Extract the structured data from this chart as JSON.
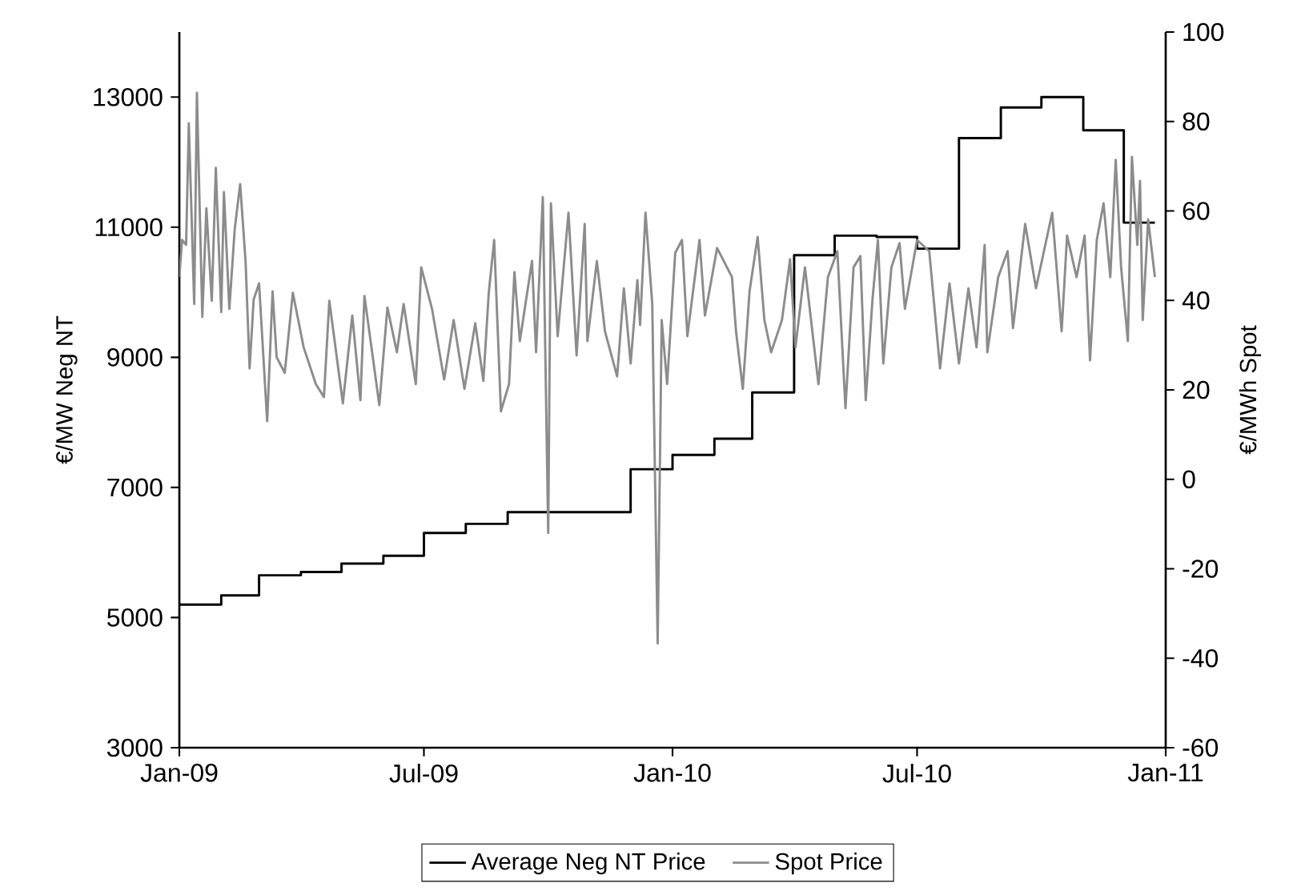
{
  "chart_data": {
    "type": "line",
    "ylabel": "€/MW Neg NT",
    "y2label": "€/MWh Spot",
    "legend": "bottom",
    "marker": "none",
    "xlim": [
      "2009-01-01",
      "2011-01-01"
    ],
    "xticks": [
      {
        "value": "2009-01-01",
        "label": "Jan-09"
      },
      {
        "value": "2009-07-01",
        "label": "Jul-09"
      },
      {
        "value": "2010-01-01",
        "label": "Jan-10"
      },
      {
        "value": "2010-07-01",
        "label": "Jul-10"
      },
      {
        "value": "2011-01-01",
        "label": "Jan-11"
      }
    ],
    "ylim": [
      3000,
      14000
    ],
    "yticks": [
      3000,
      5000,
      7000,
      9000,
      11000,
      13000
    ],
    "y2lim": [
      -60,
      100
    ],
    "y2ticks": [
      -60,
      -40,
      -20,
      0,
      20,
      40,
      60,
      80,
      100
    ],
    "series": [
      {
        "name": "Average Neg NT Price",
        "type": "step",
        "color": "#000000",
        "x": [
          "2009-01-01",
          "2009-02-01",
          "2009-03-01",
          "2009-04-01",
          "2009-05-01",
          "2009-06-01",
          "2009-07-01",
          "2009-08-01",
          "2009-09-01",
          "2009-12-01",
          "2010-01-01",
          "2010-02-01",
          "2010-03-01",
          "2010-04-01",
          "2010-05-01",
          "2010-06-01",
          "2010-07-01",
          "2010-08-01",
          "2010-09-01",
          "2010-10-01",
          "2010-11-01",
          "2010-12-01",
          "2010-12-24"
        ],
        "values": [
          5200,
          5340,
          5650,
          5700,
          5830,
          5950,
          6300,
          6440,
          6620,
          7280,
          7500,
          7750,
          8460,
          10570,
          10870,
          10850,
          10670,
          12370,
          12840,
          13000,
          12490,
          11070,
          11070
        ]
      },
      {
        "name": "Spot Price",
        "axis": "y2",
        "color": "#8c8c8c",
        "x": [
          "2009-01-01",
          "2009-01-03",
          "2009-01-06",
          "2009-01-08",
          "2009-01-12",
          "2009-01-14",
          "2009-01-18",
          "2009-01-21",
          "2009-01-25",
          "2009-01-28",
          "2009-02-01",
          "2009-02-03",
          "2009-02-07",
          "2009-02-11",
          "2009-02-15",
          "2009-02-19",
          "2009-02-22",
          "2009-02-25",
          "2009-03-01",
          "2009-03-07",
          "2009-03-11",
          "2009-03-14",
          "2009-03-20",
          "2009-03-26",
          "2009-04-03",
          "2009-04-12",
          "2009-04-18",
          "2009-04-22",
          "2009-05-02",
          "2009-05-09",
          "2009-05-15",
          "2009-05-18",
          "2009-05-29",
          "2009-06-04",
          "2009-06-11",
          "2009-06-16",
          "2009-06-25",
          "2009-06-29",
          "2009-07-07",
          "2009-07-16",
          "2009-07-23",
          "2009-07-31",
          "2009-08-08",
          "2009-08-14",
          "2009-08-18",
          "2009-08-22",
          "2009-08-27",
          "2009-09-02",
          "2009-09-06",
          "2009-09-10",
          "2009-09-19",
          "2009-09-22",
          "2009-09-27",
          "2009-10-01",
          "2009-10-03",
          "2009-10-08",
          "2009-10-16",
          "2009-10-22",
          "2009-10-28",
          "2009-10-30",
          "2009-11-06",
          "2009-11-12",
          "2009-11-21",
          "2009-11-26",
          "2009-12-01",
          "2009-12-06",
          "2009-12-08",
          "2009-12-12",
          "2009-12-17",
          "2009-12-21",
          "2009-12-24",
          "2009-12-28",
          "2010-01-03",
          "2010-01-08",
          "2010-01-12",
          "2010-01-21",
          "2010-01-25",
          "2010-02-03",
          "2010-02-14",
          "2010-02-17",
          "2010-02-22",
          "2010-02-27",
          "2010-03-05",
          "2010-03-10",
          "2010-03-15",
          "2010-03-23",
          "2010-03-29",
          "2010-04-02",
          "2010-04-09",
          "2010-04-19",
          "2010-04-26",
          "2010-05-03",
          "2010-05-09",
          "2010-05-15",
          "2010-05-20",
          "2010-05-24",
          "2010-05-29",
          "2010-06-02",
          "2010-06-06",
          "2010-06-12",
          "2010-06-18",
          "2010-06-22",
          "2010-07-01",
          "2010-07-10",
          "2010-07-18",
          "2010-07-25",
          "2010-08-01",
          "2010-08-08",
          "2010-08-14",
          "2010-08-20",
          "2010-08-22",
          "2010-08-30",
          "2010-09-06",
          "2010-09-10",
          "2010-09-19",
          "2010-09-27",
          "2010-10-09",
          "2010-10-16",
          "2010-10-20",
          "2010-10-27",
          "2010-11-02",
          "2010-11-06",
          "2010-11-11",
          "2010-11-16",
          "2010-11-21",
          "2010-11-25",
          "2010-11-29",
          "2010-12-04",
          "2010-12-07",
          "2010-12-11",
          "2010-12-13",
          "2010-12-15",
          "2010-12-19",
          "2010-12-24"
        ],
        "values": [
          45.2,
          53.5,
          52.4,
          79.6,
          39.2,
          86.4,
          36.3,
          60.6,
          39.9,
          69.6,
          37.4,
          64.2,
          38.1,
          56.0,
          66.0,
          48.8,
          24.8,
          40.2,
          43.8,
          13.0,
          42.0,
          27.3,
          23.8,
          41.7,
          29.5,
          21.3,
          18.4,
          39.9,
          17.0,
          36.6,
          17.7,
          41.0,
          16.6,
          38.4,
          28.4,
          39.2,
          21.3,
          47.4,
          38.1,
          22.3,
          35.6,
          20.2,
          34.9,
          22.0,
          41.7,
          53.5,
          15.2,
          21.3,
          46.3,
          30.9,
          48.8,
          28.4,
          63.1,
          -12.0,
          61.7,
          32.0,
          59.6,
          27.7,
          57.1,
          30.9,
          48.8,
          33.1,
          23.0,
          42.7,
          25.9,
          44.5,
          34.5,
          59.6,
          39.2,
          -36.7,
          35.6,
          21.3,
          50.6,
          53.5,
          32.0,
          53.5,
          36.6,
          51.7,
          45.2,
          33.1,
          20.2,
          42.0,
          54.2,
          35.6,
          28.4,
          35.6,
          49.2,
          29.5,
          47.4,
          21.3,
          45.2,
          51.0,
          15.9,
          47.4,
          49.9,
          17.7,
          40.2,
          53.5,
          25.9,
          47.4,
          52.8,
          38.1,
          53.5,
          51.0,
          24.8,
          43.8,
          25.9,
          42.7,
          29.5,
          52.4,
          28.4,
          45.2,
          51.0,
          33.8,
          57.1,
          42.7,
          59.6,
          33.1,
          54.5,
          45.2,
          54.5,
          26.6,
          53.5,
          61.7,
          45.2,
          71.4,
          47.4,
          30.9,
          72.1,
          52.4,
          66.7,
          35.6,
          58.1,
          45.2
        ]
      }
    ]
  }
}
